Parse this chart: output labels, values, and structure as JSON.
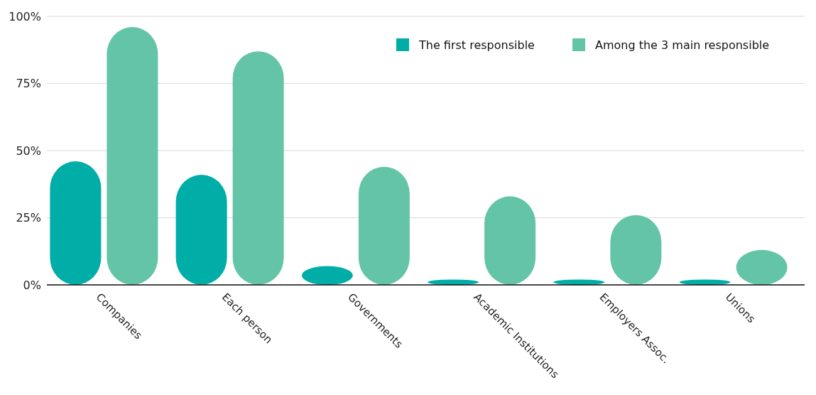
{
  "chart_data": {
    "type": "bar",
    "categories": [
      "Companies",
      "Each person",
      "Governments",
      "Academic Institutions",
      "Employers Assoc.",
      "Unions"
    ],
    "series": [
      {
        "name": "The first responsible",
        "color": "#00ada7",
        "values": [
          46,
          41,
          7,
          2,
          2,
          2
        ]
      },
      {
        "name": "Among the 3 main responsible",
        "color": "#64c4a8",
        "values": [
          96,
          87,
          44,
          33,
          26,
          13
        ]
      }
    ],
    "ylim": [
      0,
      100
    ],
    "yticks": [
      {
        "value": 0,
        "label": "0%"
      },
      {
        "value": 25,
        "label": "25%"
      },
      {
        "value": 50,
        "label": "50%"
      },
      {
        "value": 75,
        "label": "75%"
      },
      {
        "value": 100,
        "label": "100%"
      }
    ],
    "grid": "y",
    "legend": "top right"
  }
}
